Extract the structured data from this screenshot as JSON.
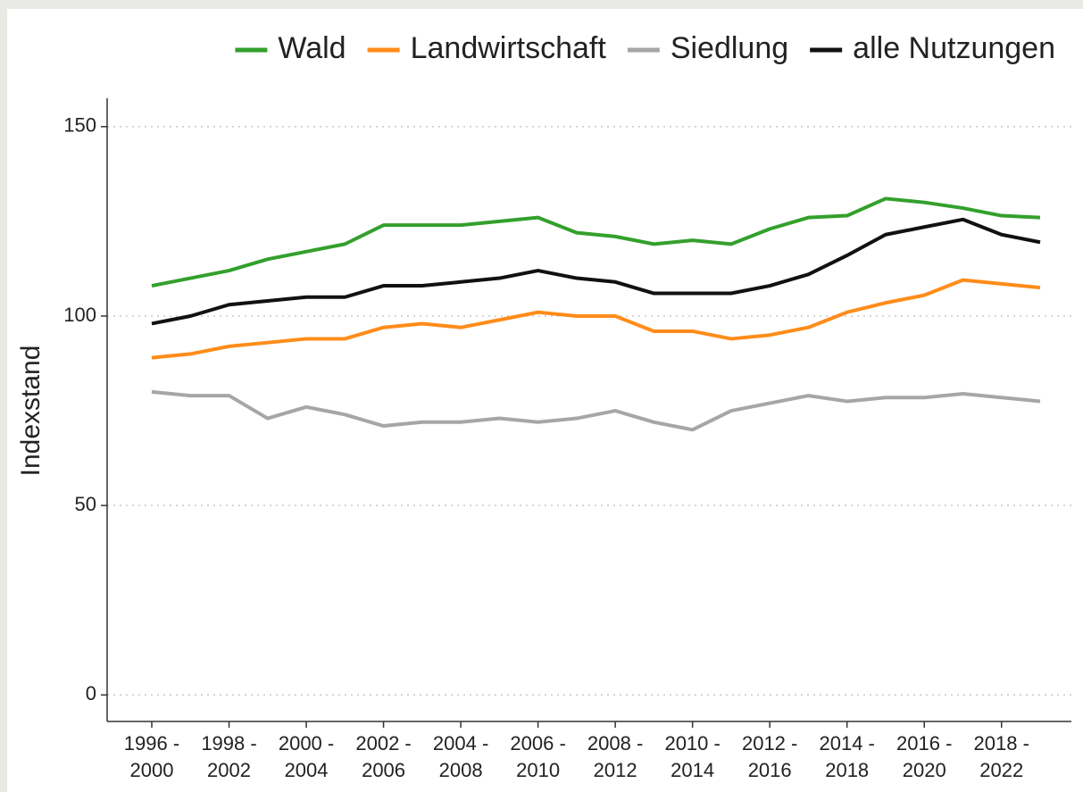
{
  "chart_data": {
    "type": "line",
    "y_label": "Indexstand",
    "categories": [
      "1996 - 2000",
      null,
      "1998 - 2002",
      null,
      "2000 - 2004",
      null,
      "2002 - 2006",
      null,
      "2004 - 2008",
      null,
      "2006 - 2010",
      null,
      "2008 - 2012",
      null,
      "2010 - 2014",
      null,
      "2012 - 2016",
      null,
      "2014 - 2018",
      null,
      "2016 - 2020",
      null,
      "2018 - 2022",
      null
    ],
    "series": [
      {
        "name": "Wald",
        "color": "#33a02c",
        "values": [
          108,
          110,
          112,
          115,
          117,
          119,
          124,
          124,
          124,
          125,
          126,
          122,
          121,
          119,
          120,
          119,
          123,
          126,
          126.5,
          131,
          130,
          128.5,
          126.5,
          126
        ]
      },
      {
        "name": "Landwirtschaft",
        "color": "#ff8c1a",
        "values": [
          89,
          90,
          92,
          93,
          94,
          94,
          97,
          98,
          97,
          99,
          101,
          100,
          100,
          96,
          96,
          94,
          95,
          97,
          101,
          103.5,
          105.5,
          109.5,
          108.5,
          107.5
        ]
      },
      {
        "name": "Siedlung",
        "color": "#a6a6a6",
        "values": [
          80,
          79,
          79,
          73,
          76,
          74,
          71,
          72,
          72,
          73,
          72,
          73,
          75,
          72,
          70,
          75,
          77,
          79,
          77.5,
          78.5,
          78.5,
          79.5,
          78.5,
          77.5
        ]
      },
      {
        "name": "alle Nutzungen",
        "color": "#111111",
        "values": [
          98,
          100,
          103,
          104,
          105,
          105,
          108,
          108,
          109,
          110,
          112,
          110,
          109,
          106,
          106,
          106,
          108,
          111,
          116,
          121.5,
          123.5,
          125.5,
          121.5,
          119.5
        ]
      }
    ],
    "ylim": [
      -7,
      157.5
    ],
    "yticks": [
      0,
      50,
      100,
      150
    ],
    "grid": true,
    "legend": "top"
  }
}
